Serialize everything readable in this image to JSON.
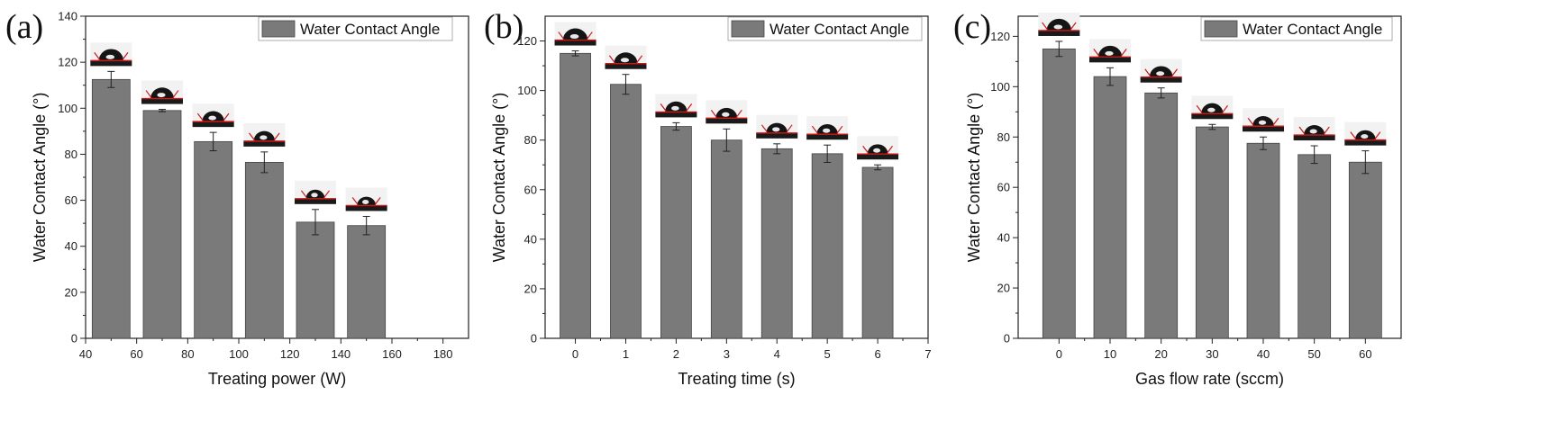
{
  "chart_data": [
    {
      "panel": "(a)",
      "type": "bar",
      "legend": "Water Contact Angle",
      "legend_position": "top-right",
      "xlabel": "Treating power (W)",
      "ylabel": "Water Contact Angle (°)",
      "xlim": [
        40,
        190
      ],
      "ylim": [
        0,
        140
      ],
      "xticks": [
        40,
        60,
        80,
        100,
        120,
        140,
        160,
        180
      ],
      "yticks": [
        0,
        20,
        40,
        60,
        80,
        100,
        120,
        140
      ],
      "x": [
        50,
        70,
        90,
        110,
        130,
        150
      ],
      "values": [
        112.5,
        99,
        85.5,
        76.5,
        50.5,
        49
      ],
      "errors": [
        3.5,
        0.5,
        4,
        4.5,
        5.5,
        4
      ],
      "droplet_images": true
    },
    {
      "panel": "(b)",
      "type": "bar",
      "legend": "Water Contact Angle",
      "legend_position": "top-right",
      "xlabel": "Treating time (s)",
      "ylabel": "Water Contact Angle (°)",
      "xlim": [
        -0.6,
        7
      ],
      "ylim": [
        0,
        130
      ],
      "xticks": [
        0,
        1,
        2,
        3,
        4,
        5,
        6,
        7
      ],
      "yticks": [
        0,
        20,
        40,
        60,
        80,
        100,
        120
      ],
      "x": [
        0,
        1,
        2,
        3,
        4,
        5,
        6
      ],
      "values": [
        115,
        102.5,
        85.5,
        80,
        76.5,
        74.5,
        69
      ],
      "errors": [
        1,
        4,
        1.5,
        4.5,
        2,
        3.5,
        1
      ],
      "droplet_images": true
    },
    {
      "panel": "(c)",
      "type": "bar",
      "legend": "Water Contact Angle",
      "legend_position": "top-right",
      "xlabel": "Gas flow rate (sccm)",
      "ylabel": "Water Contact Angle (°)",
      "xlim": [
        -8,
        67
      ],
      "ylim": [
        0,
        128
      ],
      "xticks": [
        0,
        10,
        20,
        30,
        40,
        50,
        60
      ],
      "yticks": [
        0,
        20,
        40,
        60,
        80,
        100,
        120
      ],
      "x": [
        0,
        10,
        20,
        30,
        40,
        50,
        60
      ],
      "values": [
        115,
        104,
        97.5,
        84,
        77.5,
        73,
        70
      ],
      "errors": [
        3,
        3.5,
        2,
        1,
        2.5,
        3.5,
        4.5
      ],
      "droplet_images": true
    }
  ]
}
